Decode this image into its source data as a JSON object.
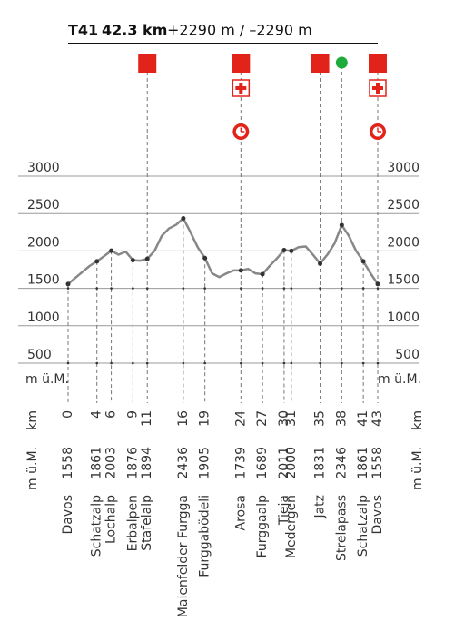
{
  "chart_data": {
    "type": "line",
    "title": "T41",
    "distance": "42.3 km",
    "ascent": "+2290 m / –2290 m",
    "y_label": "m ü.M.",
    "x_label": "km",
    "color": "#888888",
    "xlim": [
      0,
      43
    ],
    "ylim": [
      500,
      3000
    ],
    "yticks": [
      500,
      1000,
      1500,
      2000,
      2500,
      3000
    ],
    "grid": true,
    "x": [
      0,
      1,
      2,
      3,
      4,
      5,
      6,
      7,
      8,
      9,
      10,
      11,
      12,
      13,
      14,
      15,
      16,
      17,
      18,
      19,
      20,
      21,
      22,
      23,
      24,
      25,
      26,
      27,
      28,
      29,
      30,
      31,
      32,
      33,
      34,
      35,
      36,
      37,
      38,
      39,
      40,
      41,
      42,
      43
    ],
    "values": [
      1558,
      1640,
      1720,
      1800,
      1861,
      1930,
      2003,
      1950,
      1990,
      1876,
      1870,
      1894,
      2000,
      2200,
      2300,
      2350,
      2436,
      2250,
      2050,
      1905,
      1700,
      1650,
      1700,
      1740,
      1739,
      1760,
      1700,
      1689,
      1800,
      1900,
      2011,
      2000,
      2050,
      2060,
      1950,
      1831,
      1950,
      2100,
      2346,
      2200,
      2000,
      1861,
      1700,
      1558
    ],
    "waypoints": {
      "km": [
        0,
        4,
        6,
        9,
        11,
        16,
        19,
        24,
        27,
        30,
        31,
        35,
        38,
        41,
        43
      ],
      "elevation": [
        1558,
        1861,
        2003,
        1876,
        1894,
        2436,
        1905,
        1739,
        1689,
        2011,
        2000,
        1831,
        2346,
        1861,
        1558
      ],
      "names": [
        "Davos",
        "Schatzalp",
        "Lochalp",
        "Erbalpen",
        "Stafelalp",
        "Maienfelder Furgga",
        "Furggabödeli",
        "Arosa",
        "Furggaalp",
        "Tieja",
        "Medergen",
        "Jatz",
        "Strelapass",
        "Schatzalp",
        "Davos"
      ]
    }
  }
}
